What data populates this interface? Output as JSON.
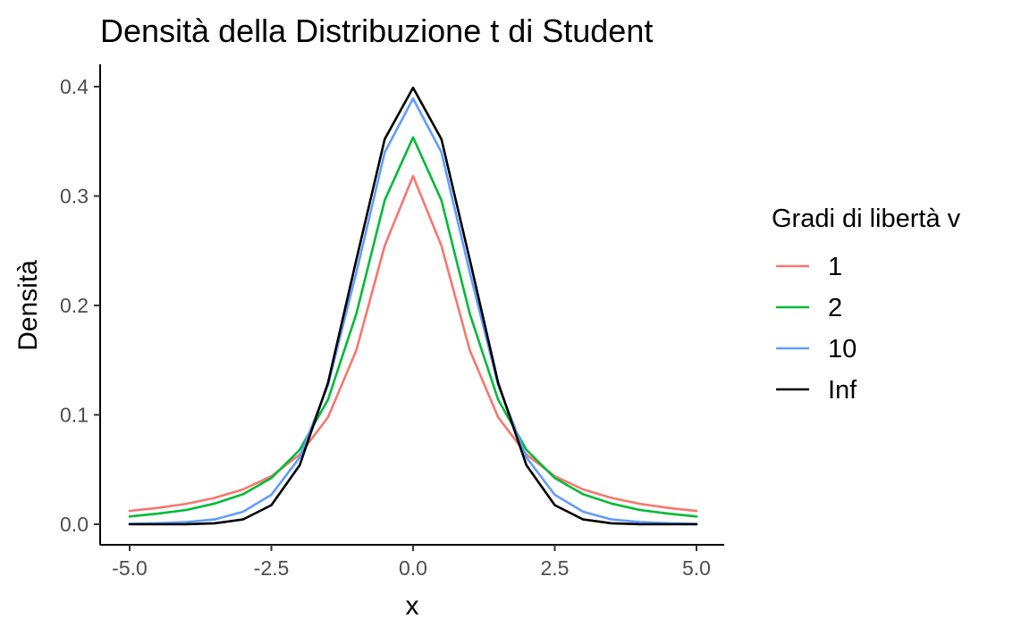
{
  "chart_data": {
    "type": "line",
    "title": "Densità della Distribuzione t di Student",
    "xlabel": "x",
    "ylabel": "Densità",
    "xlim": [
      -5.0,
      5.0
    ],
    "ylim": [
      0.0,
      0.4
    ],
    "x_ticks": [
      "-5.0",
      "-2.5",
      "0.0",
      "2.5",
      "5.0"
    ],
    "y_ticks": [
      "0.0",
      "0.1",
      "0.2",
      "0.3",
      "0.4"
    ],
    "grid": false,
    "legend_title": "Gradi di libertà v",
    "legend_position": "right",
    "x": [
      -5.0,
      -4.5,
      -4.0,
      -3.5,
      -3.0,
      -2.5,
      -2.0,
      -1.5,
      -1.0,
      -0.5,
      0.0,
      0.5,
      1.0,
      1.5,
      2.0,
      2.5,
      3.0,
      3.5,
      4.0,
      4.5,
      5.0
    ],
    "series": [
      {
        "name": "1",
        "color": "#f8766d",
        "values": [
          0.0122,
          0.0149,
          0.0187,
          0.0241,
          0.0318,
          0.0439,
          0.0637,
          0.0979,
          0.1592,
          0.2546,
          0.3183,
          0.2546,
          0.1592,
          0.0979,
          0.0637,
          0.0439,
          0.0318,
          0.0241,
          0.0187,
          0.0149,
          0.0122
        ]
      },
      {
        "name": "2",
        "color": "#00ba38",
        "values": [
          0.0071,
          0.0097,
          0.0131,
          0.0189,
          0.0274,
          0.0422,
          0.068,
          0.114,
          0.1925,
          0.2962,
          0.3536,
          0.2962,
          0.1925,
          0.114,
          0.068,
          0.0422,
          0.0274,
          0.0189,
          0.0131,
          0.0097,
          0.0071
        ]
      },
      {
        "name": "10",
        "color": "#619cff",
        "values": [
          0.0004,
          0.001,
          0.002,
          0.0044,
          0.0114,
          0.0269,
          0.0611,
          0.1274,
          0.2304,
          0.34,
          0.3891,
          0.34,
          0.2304,
          0.1274,
          0.0611,
          0.0269,
          0.0114,
          0.0044,
          0.002,
          0.001,
          0.0004
        ]
      },
      {
        "name": "Inf",
        "color": "#000000",
        "values": [
          0.0,
          0.0,
          0.0001,
          0.0009,
          0.0044,
          0.0175,
          0.054,
          0.1295,
          0.242,
          0.3521,
          0.3989,
          0.3521,
          0.242,
          0.1295,
          0.054,
          0.0175,
          0.0044,
          0.0009,
          0.0001,
          0.0,
          0.0
        ]
      }
    ]
  }
}
